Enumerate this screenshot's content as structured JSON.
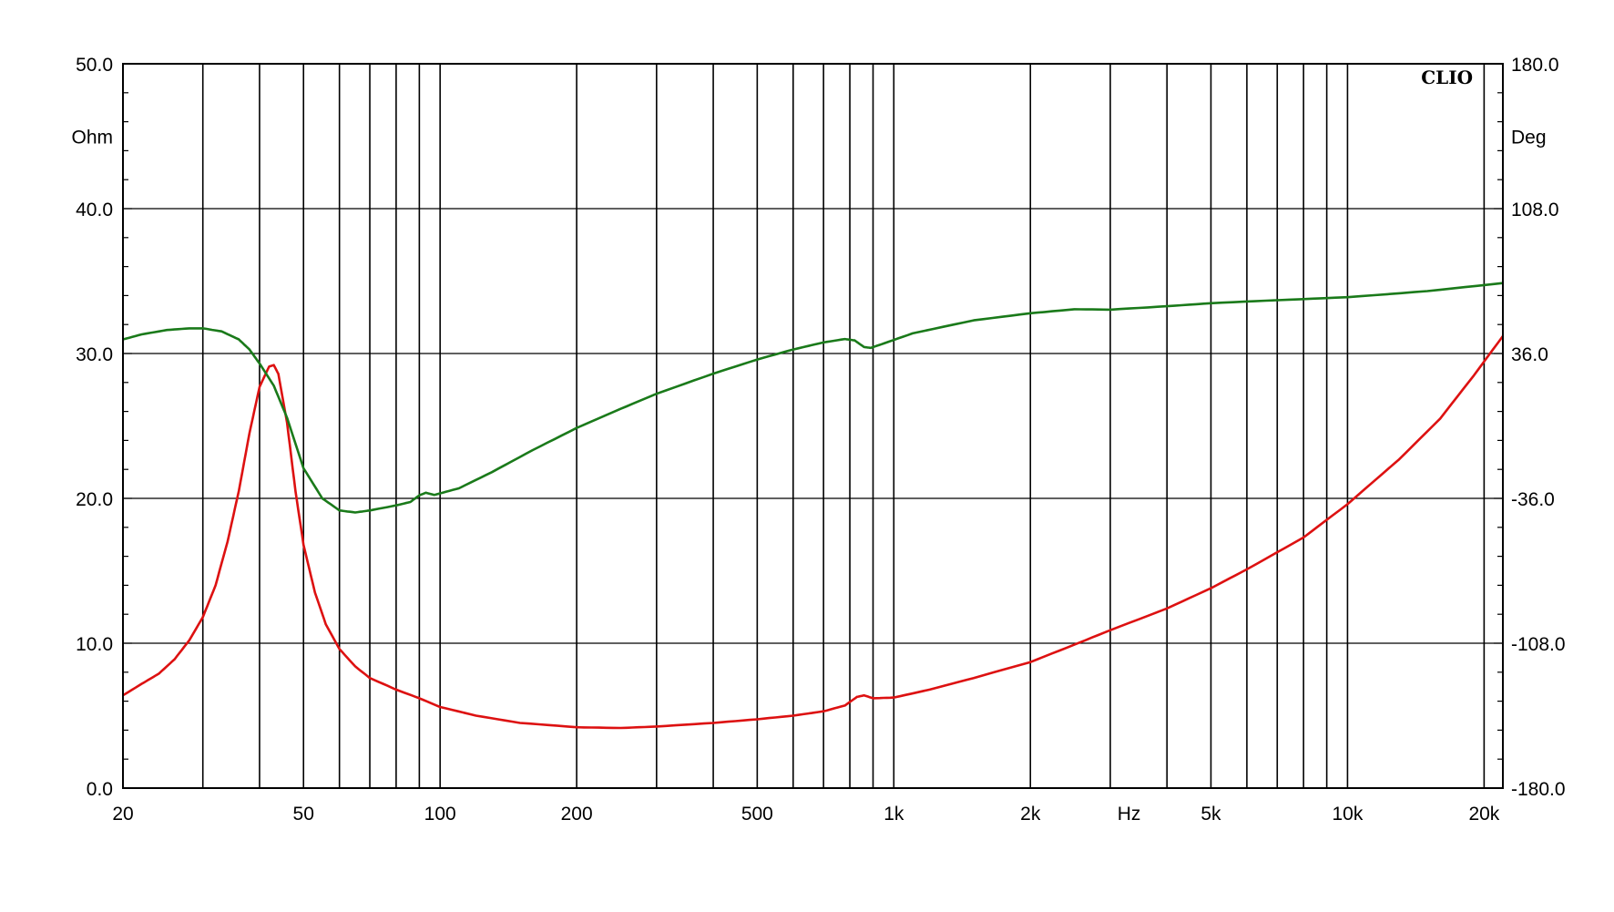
{
  "chart_data": {
    "type": "line",
    "brand": "CLIO",
    "title": "",
    "x_axis": {
      "scale": "log",
      "range": [
        20,
        22000
      ],
      "unit_label": "Hz",
      "tick_labels": [
        {
          "value": 20,
          "label": "20"
        },
        {
          "value": 50,
          "label": "50"
        },
        {
          "value": 100,
          "label": "100"
        },
        {
          "value": 200,
          "label": "200"
        },
        {
          "value": 500,
          "label": "500"
        },
        {
          "value": 1000,
          "label": "1k"
        },
        {
          "value": 2000,
          "label": "2k"
        },
        {
          "value": 5000,
          "label": "5k"
        },
        {
          "value": 10000,
          "label": "10k"
        },
        {
          "value": 20000,
          "label": "20k"
        }
      ],
      "gridlines": [
        30,
        40,
        50,
        60,
        70,
        80,
        90,
        100,
        200,
        300,
        400,
        500,
        600,
        700,
        800,
        900,
        1000,
        2000,
        3000,
        4000,
        5000,
        6000,
        7000,
        8000,
        9000,
        10000,
        20000
      ]
    },
    "y_left": {
      "unit_label": "Ohm",
      "range": [
        0,
        50
      ],
      "ticks": [
        0,
        10,
        20,
        30,
        40,
        50
      ],
      "tick_labels": [
        "0.0",
        "10.0",
        "20.0",
        "30.0",
        "40.0",
        "50.0"
      ]
    },
    "y_right": {
      "unit_label": "Deg",
      "range": [
        -180,
        180
      ],
      "ticks": [
        -180,
        -108,
        -36,
        36,
        108,
        180
      ],
      "tick_labels": [
        "-180.0",
        "-108.0",
        "-36.0",
        "36.0",
        "108.0",
        "180.0"
      ]
    },
    "grid": true,
    "series": [
      {
        "axis": "left",
        "color": "#dd1111",
        "points": [
          [
            20,
            6.4
          ],
          [
            22,
            7.2
          ],
          [
            24,
            7.9
          ],
          [
            26,
            8.9
          ],
          [
            28,
            10.2
          ],
          [
            30,
            11.8
          ],
          [
            32,
            14.0
          ],
          [
            34,
            17.0
          ],
          [
            36,
            20.5
          ],
          [
            38,
            24.5
          ],
          [
            40,
            27.7
          ],
          [
            42,
            29.1
          ],
          [
            43,
            29.2
          ],
          [
            44,
            28.6
          ],
          [
            46,
            25.2
          ],
          [
            48,
            20.5
          ],
          [
            50,
            16.8
          ],
          [
            53,
            13.5
          ],
          [
            56,
            11.3
          ],
          [
            60,
            9.6
          ],
          [
            65,
            8.4
          ],
          [
            70,
            7.6
          ],
          [
            80,
            6.8
          ],
          [
            90,
            6.2
          ],
          [
            100,
            5.6
          ],
          [
            120,
            5.0
          ],
          [
            150,
            4.5
          ],
          [
            200,
            4.2
          ],
          [
            250,
            4.15
          ],
          [
            300,
            4.25
          ],
          [
            400,
            4.5
          ],
          [
            500,
            4.75
          ],
          [
            600,
            5.0
          ],
          [
            700,
            5.3
          ],
          [
            780,
            5.7
          ],
          [
            830,
            6.3
          ],
          [
            860,
            6.4
          ],
          [
            900,
            6.2
          ],
          [
            1000,
            6.25
          ],
          [
            1200,
            6.8
          ],
          [
            1500,
            7.6
          ],
          [
            2000,
            8.7
          ],
          [
            2500,
            9.9
          ],
          [
            3000,
            10.9
          ],
          [
            4000,
            12.4
          ],
          [
            5000,
            13.8
          ],
          [
            6000,
            15.1
          ],
          [
            8000,
            17.3
          ],
          [
            10000,
            19.6
          ],
          [
            13000,
            22.7
          ],
          [
            16000,
            25.5
          ],
          [
            19000,
            28.5
          ],
          [
            22000,
            31.2
          ]
        ]
      },
      {
        "axis": "right",
        "color": "#1a7a1a",
        "points": [
          [
            20,
            43.0
          ],
          [
            22,
            45.5
          ],
          [
            25,
            47.7
          ],
          [
            28,
            48.5
          ],
          [
            30,
            48.5
          ],
          [
            33,
            47.0
          ],
          [
            36,
            43.0
          ],
          [
            38,
            38.0
          ],
          [
            40,
            31.0
          ],
          [
            43,
            20.0
          ],
          [
            46,
            4.0
          ],
          [
            50,
            -21.0
          ],
          [
            55,
            -36.0
          ],
          [
            60,
            -42.0
          ],
          [
            65,
            -43.0
          ],
          [
            70,
            -42.0
          ],
          [
            80,
            -39.5
          ],
          [
            86,
            -37.8
          ],
          [
            90,
            -34.5
          ],
          [
            93,
            -33.2
          ],
          [
            97,
            -34.3
          ],
          [
            100,
            -33.5
          ],
          [
            110,
            -31.0
          ],
          [
            130,
            -23.0
          ],
          [
            160,
            -12.0
          ],
          [
            200,
            -1.0
          ],
          [
            250,
            8.5
          ],
          [
            300,
            16.0
          ],
          [
            400,
            26.0
          ],
          [
            500,
            33.0
          ],
          [
            600,
            38.0
          ],
          [
            700,
            41.5
          ],
          [
            780,
            43.2
          ],
          [
            820,
            42.5
          ],
          [
            860,
            39.2
          ],
          [
            890,
            38.8
          ],
          [
            950,
            41.0
          ],
          [
            1100,
            46.0
          ],
          [
            1500,
            52.5
          ],
          [
            2000,
            56.0
          ],
          [
            2500,
            58.0
          ],
          [
            3000,
            57.8
          ],
          [
            4000,
            59.5
          ],
          [
            5000,
            61.0
          ],
          [
            7000,
            62.5
          ],
          [
            10000,
            64.0
          ],
          [
            15000,
            67.0
          ],
          [
            22000,
            71.0
          ]
        ]
      }
    ]
  }
}
